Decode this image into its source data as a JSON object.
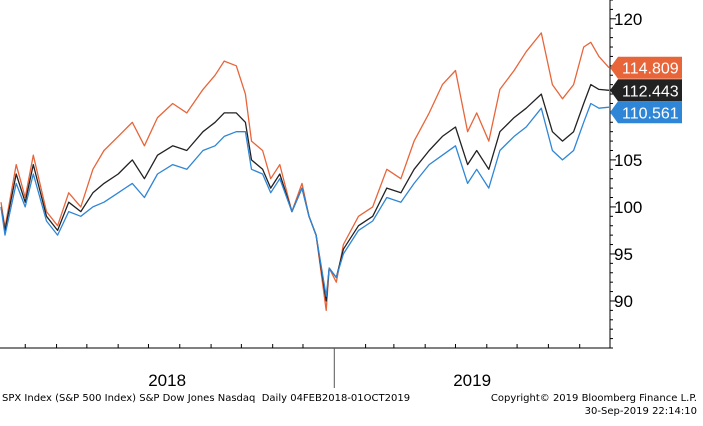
{
  "chart_data": {
    "type": "line",
    "ylim": [
      85,
      122
    ],
    "y_ticks": [
      90,
      95,
      100,
      105,
      110,
      115,
      120
    ],
    "x_range": [
      "2018-02-04",
      "2019-10-01"
    ],
    "x_labels": [
      "2018",
      "2019"
    ],
    "grid": false,
    "series": [
      {
        "color": "#e8653a",
        "last_value": "114.809",
        "points": [
          [
            "2018-02-05",
            100.5
          ],
          [
            "2018-02-09",
            97.8
          ],
          [
            "2018-02-20",
            104.5
          ],
          [
            "2018-03-01",
            101.0
          ],
          [
            "2018-03-09",
            105.5
          ],
          [
            "2018-03-22",
            99.5
          ],
          [
            "2018-04-02",
            98.0
          ],
          [
            "2018-04-13",
            101.5
          ],
          [
            "2018-04-25",
            100.0
          ],
          [
            "2018-05-07",
            104.0
          ],
          [
            "2018-05-18",
            106.0
          ],
          [
            "2018-06-01",
            107.5
          ],
          [
            "2018-06-15",
            109.0
          ],
          [
            "2018-06-27",
            106.5
          ],
          [
            "2018-07-10",
            109.5
          ],
          [
            "2018-07-25",
            111.0
          ],
          [
            "2018-08-08",
            110.0
          ],
          [
            "2018-08-24",
            112.5
          ],
          [
            "2018-09-05",
            114.0
          ],
          [
            "2018-09-14",
            115.5
          ],
          [
            "2018-09-26",
            115.0
          ],
          [
            "2018-10-05",
            112.0
          ],
          [
            "2018-10-11",
            107.0
          ],
          [
            "2018-10-22",
            106.0
          ],
          [
            "2018-10-30",
            103.0
          ],
          [
            "2018-11-08",
            104.5
          ],
          [
            "2018-11-20",
            99.5
          ],
          [
            "2018-11-30",
            102.5
          ],
          [
            "2018-12-07",
            99.0
          ],
          [
            "2018-12-14",
            97.0
          ],
          [
            "2018-12-24",
            89.0
          ],
          [
            "2018-12-27",
            93.5
          ],
          [
            "2019-01-03",
            92.0
          ],
          [
            "2019-01-10",
            96.0
          ],
          [
            "2019-01-25",
            99.0
          ],
          [
            "2019-02-08",
            100.0
          ],
          [
            "2019-02-22",
            104.0
          ],
          [
            "2019-03-08",
            103.0
          ],
          [
            "2019-03-21",
            107.0
          ],
          [
            "2019-04-05",
            110.0
          ],
          [
            "2019-04-18",
            113.0
          ],
          [
            "2019-05-01",
            114.5
          ],
          [
            "2019-05-13",
            108.0
          ],
          [
            "2019-05-22",
            110.0
          ],
          [
            "2019-06-03",
            107.0
          ],
          [
            "2019-06-14",
            112.5
          ],
          [
            "2019-06-28",
            114.5
          ],
          [
            "2019-07-10",
            116.5
          ],
          [
            "2019-07-25",
            118.5
          ],
          [
            "2019-08-05",
            113.0
          ],
          [
            "2019-08-15",
            111.5
          ],
          [
            "2019-08-26",
            113.0
          ],
          [
            "2019-09-05",
            117.0
          ],
          [
            "2019-09-12",
            117.5
          ],
          [
            "2019-09-20",
            116.0
          ],
          [
            "2019-09-30",
            114.8
          ]
        ]
      },
      {
        "color": "#222222",
        "last_value": "112.443",
        "points": [
          [
            "2018-02-05",
            100.0
          ],
          [
            "2018-02-09",
            97.5
          ],
          [
            "2018-02-20",
            103.5
          ],
          [
            "2018-03-01",
            100.5
          ],
          [
            "2018-03-09",
            104.5
          ],
          [
            "2018-03-22",
            99.0
          ],
          [
            "2018-04-02",
            97.5
          ],
          [
            "2018-04-13",
            100.5
          ],
          [
            "2018-04-25",
            99.5
          ],
          [
            "2018-05-07",
            101.5
          ],
          [
            "2018-05-18",
            102.5
          ],
          [
            "2018-06-01",
            103.5
          ],
          [
            "2018-06-15",
            105.0
          ],
          [
            "2018-06-27",
            103.0
          ],
          [
            "2018-07-10",
            105.5
          ],
          [
            "2018-07-25",
            106.5
          ],
          [
            "2018-08-08",
            106.0
          ],
          [
            "2018-08-24",
            108.0
          ],
          [
            "2018-09-05",
            109.0
          ],
          [
            "2018-09-14",
            110.0
          ],
          [
            "2018-09-26",
            110.0
          ],
          [
            "2018-10-05",
            109.0
          ],
          [
            "2018-10-11",
            105.0
          ],
          [
            "2018-10-22",
            104.0
          ],
          [
            "2018-10-30",
            102.0
          ],
          [
            "2018-11-08",
            103.5
          ],
          [
            "2018-11-20",
            99.5
          ],
          [
            "2018-11-30",
            102.0
          ],
          [
            "2018-12-07",
            99.0
          ],
          [
            "2018-12-14",
            97.0
          ],
          [
            "2018-12-24",
            90.0
          ],
          [
            "2018-12-27",
            93.5
          ],
          [
            "2019-01-03",
            92.5
          ],
          [
            "2019-01-10",
            95.5
          ],
          [
            "2019-01-25",
            98.0
          ],
          [
            "2019-02-08",
            99.0
          ],
          [
            "2019-02-22",
            102.0
          ],
          [
            "2019-03-08",
            101.5
          ],
          [
            "2019-03-21",
            104.0
          ],
          [
            "2019-04-05",
            106.0
          ],
          [
            "2019-04-18",
            107.5
          ],
          [
            "2019-05-01",
            108.5
          ],
          [
            "2019-05-13",
            104.5
          ],
          [
            "2019-05-22",
            106.0
          ],
          [
            "2019-06-03",
            104.0
          ],
          [
            "2019-06-14",
            108.0
          ],
          [
            "2019-06-28",
            109.5
          ],
          [
            "2019-07-10",
            110.5
          ],
          [
            "2019-07-25",
            112.0
          ],
          [
            "2019-08-05",
            108.0
          ],
          [
            "2019-08-15",
            107.0
          ],
          [
            "2019-08-26",
            108.0
          ],
          [
            "2019-09-05",
            111.0
          ],
          [
            "2019-09-12",
            113.0
          ],
          [
            "2019-09-20",
            112.5
          ],
          [
            "2019-09-30",
            112.4
          ]
        ]
      },
      {
        "color": "#2f86d6",
        "last_value": "110.561",
        "points": [
          [
            "2018-02-05",
            100.0
          ],
          [
            "2018-02-09",
            97.0
          ],
          [
            "2018-02-20",
            102.5
          ],
          [
            "2018-03-01",
            100.0
          ],
          [
            "2018-03-09",
            103.5
          ],
          [
            "2018-03-22",
            98.5
          ],
          [
            "2018-04-02",
            97.0
          ],
          [
            "2018-04-13",
            99.5
          ],
          [
            "2018-04-25",
            99.0
          ],
          [
            "2018-05-07",
            100.0
          ],
          [
            "2018-05-18",
            100.5
          ],
          [
            "2018-06-01",
            101.5
          ],
          [
            "2018-06-15",
            102.5
          ],
          [
            "2018-06-27",
            101.0
          ],
          [
            "2018-07-10",
            103.5
          ],
          [
            "2018-07-25",
            104.5
          ],
          [
            "2018-08-08",
            104.0
          ],
          [
            "2018-08-24",
            106.0
          ],
          [
            "2018-09-05",
            106.5
          ],
          [
            "2018-09-14",
            107.5
          ],
          [
            "2018-09-26",
            108.0
          ],
          [
            "2018-10-05",
            108.0
          ],
          [
            "2018-10-11",
            104.0
          ],
          [
            "2018-10-22",
            103.5
          ],
          [
            "2018-10-30",
            101.5
          ],
          [
            "2018-11-08",
            103.0
          ],
          [
            "2018-11-20",
            99.5
          ],
          [
            "2018-11-30",
            102.0
          ],
          [
            "2018-12-07",
            99.0
          ],
          [
            "2018-12-14",
            97.0
          ],
          [
            "2018-12-24",
            90.5
          ],
          [
            "2018-12-27",
            93.5
          ],
          [
            "2019-01-03",
            92.5
          ],
          [
            "2019-01-10",
            95.0
          ],
          [
            "2019-01-25",
            97.5
          ],
          [
            "2019-02-08",
            98.5
          ],
          [
            "2019-02-22",
            101.0
          ],
          [
            "2019-03-08",
            100.5
          ],
          [
            "2019-03-21",
            102.5
          ],
          [
            "2019-04-05",
            104.5
          ],
          [
            "2019-04-18",
            105.5
          ],
          [
            "2019-05-01",
            106.5
          ],
          [
            "2019-05-13",
            102.5
          ],
          [
            "2019-05-22",
            104.0
          ],
          [
            "2019-06-03",
            102.0
          ],
          [
            "2019-06-14",
            106.0
          ],
          [
            "2019-06-28",
            107.5
          ],
          [
            "2019-07-10",
            108.5
          ],
          [
            "2019-07-25",
            110.5
          ],
          [
            "2019-08-05",
            106.0
          ],
          [
            "2019-08-15",
            105.0
          ],
          [
            "2019-08-26",
            106.0
          ],
          [
            "2019-09-05",
            109.0
          ],
          [
            "2019-09-12",
            111.0
          ],
          [
            "2019-09-20",
            110.5
          ],
          [
            "2019-09-30",
            110.6
          ]
        ]
      }
    ]
  },
  "footer": {
    "left": "SPX Index (S&P 500 Index) S&P Dow Jones Nasdaq  Daily 04FEB2018-01OCT2019",
    "right_line1": "Copyright© 2019 Bloomberg Finance L.P.",
    "right_line2": "30-Sep-2019 22:14:10"
  }
}
